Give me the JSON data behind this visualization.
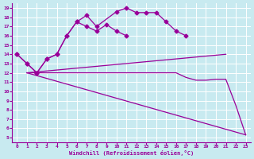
{
  "background_color": "#c8eaf0",
  "line_color": "#990099",
  "grid_color": "#ffffff",
  "xlabel": "Windchill (Refroidissement éolien,°C)",
  "xlim": [
    -0.5,
    23.5
  ],
  "ylim": [
    4.5,
    19.5
  ],
  "xticks": [
    0,
    1,
    2,
    3,
    4,
    5,
    6,
    7,
    8,
    9,
    10,
    11,
    12,
    13,
    14,
    15,
    16,
    17,
    18,
    19,
    20,
    21,
    22,
    23
  ],
  "yticks": [
    5,
    6,
    7,
    8,
    9,
    10,
    11,
    12,
    13,
    14,
    15,
    16,
    17,
    18,
    19
  ],
  "series1_x": [
    0,
    1,
    2,
    3,
    4,
    5,
    6,
    7,
    8,
    10,
    11,
    12,
    13,
    14,
    15,
    16,
    17
  ],
  "series1_y": [
    14.0,
    13.0,
    12.0,
    13.5,
    14.0,
    16.0,
    17.5,
    18.2,
    17.0,
    18.6,
    19.0,
    18.5,
    18.5,
    18.5,
    17.5,
    16.5,
    16.0
  ],
  "series2_x": [
    0,
    1,
    2,
    3,
    4,
    5,
    6,
    7,
    8,
    9,
    10,
    11
  ],
  "series2_y": [
    14.0,
    13.0,
    12.0,
    13.5,
    14.0,
    16.0,
    17.5,
    17.0,
    16.5,
    17.2,
    16.5,
    16.0
  ],
  "series3_x": [
    1,
    21
  ],
  "series3_y": [
    12.0,
    14.0
  ],
  "series4_x": [
    1,
    2,
    3,
    4,
    5,
    6,
    7,
    8,
    9,
    10,
    11,
    12,
    13,
    14,
    15,
    16,
    17,
    18,
    19,
    20,
    21,
    22,
    23
  ],
  "series4_y": [
    12.0,
    12.0,
    12.0,
    12.0,
    12.0,
    12.0,
    12.0,
    12.0,
    12.0,
    12.0,
    12.0,
    12.0,
    12.0,
    12.0,
    12.0,
    12.0,
    11.5,
    11.2,
    11.2,
    11.3,
    11.3,
    8.5,
    5.3
  ],
  "series5_x": [
    1,
    23
  ],
  "series5_y": [
    12.0,
    5.3
  ]
}
